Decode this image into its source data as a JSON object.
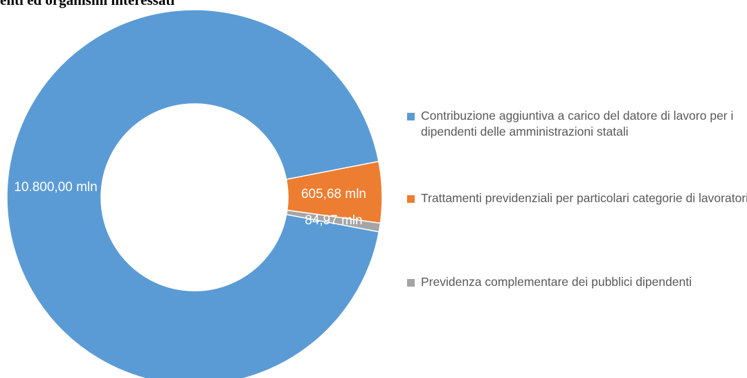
{
  "chart_data": {
    "type": "donut",
    "title": "enti ed organismi interessati",
    "categories": [
      "Contribuzione aggiuntiva a carico del datore di lavoro per i dipendenti delle amministrazioni statali",
      "Trattamenti previdenziali per particolari categorie di lavoratori",
      "Previdenza complementare dei pubblici dipendenti"
    ],
    "values": [
      10800.0,
      605.68,
      84.97
    ],
    "value_labels": [
      "10.800,00 mln",
      "605,68 mln",
      "84,97 mln"
    ],
    "colors": [
      "#5b9bd5",
      "#ed7d31",
      "#a5a5a5"
    ],
    "legend": "right"
  }
}
